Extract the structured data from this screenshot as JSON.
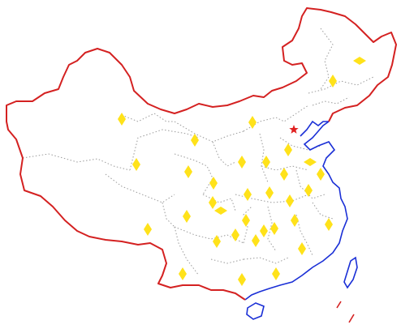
{
  "map": {
    "colors": {
      "land_border": "#d42121",
      "coastline": "#1a2fd6",
      "internal_border": "#9a9a9a",
      "province_marker": "#ffe21a",
      "capital_marker": "#e02020",
      "background": "#ffffff"
    },
    "capital_marker_icon": "star-icon",
    "province_marker_icon": "diamond-icon",
    "province_marker_count": 34
  }
}
